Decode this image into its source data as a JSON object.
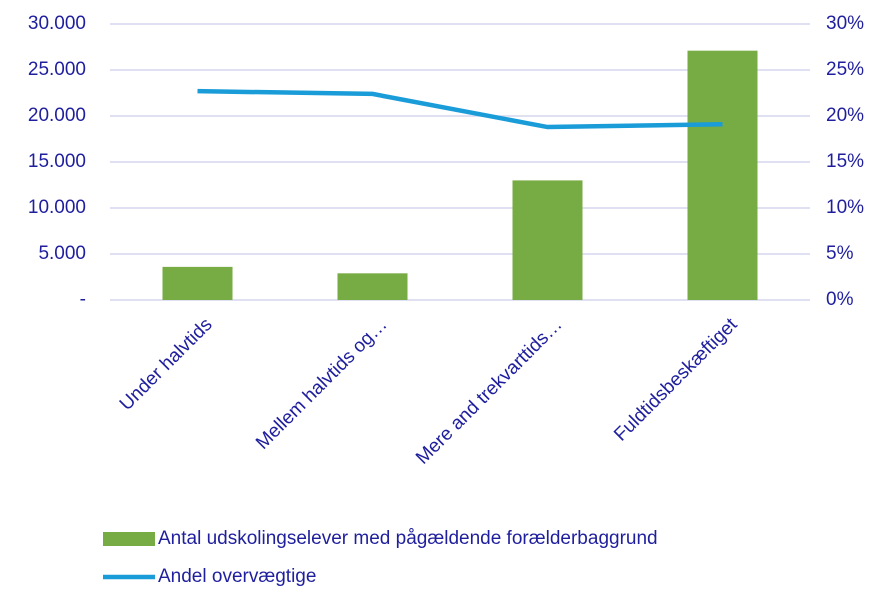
{
  "chart_data": {
    "type": "bar",
    "categories": [
      "Under halvtids",
      "Mellem halvtids og…",
      "Mere and trekvarttids…",
      "Fuldtidsbeskæftiget"
    ],
    "series": [
      {
        "name": "Antal udskolingselever med pågældende forælderbaggrund",
        "type": "bar",
        "color": "#77ab43",
        "values": [
          3600,
          2900,
          13000,
          27100
        ]
      },
      {
        "name": "Andel overvægtige",
        "type": "line",
        "axis": "y2",
        "color": "#1a9cd8",
        "values": [
          22.7,
          22.4,
          18.8,
          19.1
        ]
      }
    ],
    "ylim": [
      0,
      30000
    ],
    "yticks": [
      {
        "value": 0,
        "label": "-"
      },
      {
        "value": 5000,
        "label": "5.000"
      },
      {
        "value": 10000,
        "label": "10.000"
      },
      {
        "value": 15000,
        "label": "15.000"
      },
      {
        "value": 20000,
        "label": "20.000"
      },
      {
        "value": 25000,
        "label": "25.000"
      },
      {
        "value": 30000,
        "label": "30.000"
      }
    ],
    "y2lim": [
      0,
      30
    ],
    "y2ticks": [
      {
        "value": 0,
        "label": "0%"
      },
      {
        "value": 5,
        "label": "5%"
      },
      {
        "value": 10,
        "label": "10%"
      },
      {
        "value": 15,
        "label": "15%"
      },
      {
        "value": 20,
        "label": "20%"
      },
      {
        "value": 25,
        "label": "25%"
      },
      {
        "value": 30,
        "label": "30%"
      }
    ],
    "grid": true,
    "legend": "bottom"
  }
}
